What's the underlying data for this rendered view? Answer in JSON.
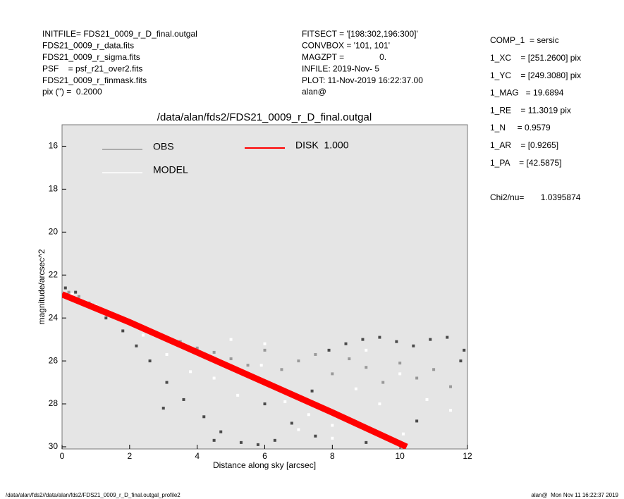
{
  "header": {
    "left": [
      "INITFILE= FDS21_0009_r_D_final.outgal",
      "FDS21_0009_r_data.fits",
      "FDS21_0009_r_sigma.fits",
      "PSF    = psf_r21_over2.fits",
      "FDS21_0009_r_finmask.fits",
      "pix (\") =  0.2000"
    ],
    "middle": [
      "FITSECT = '[198:302,196:300]'",
      "CONVBOX = '101, 101'",
      "MAGZPT =               0.",
      "INFILE: 2019-Nov- 5",
      "PLOT: 11-Nov-2019 16:22:37.00",
      "alan@"
    ],
    "right": [
      "COMP_1  = sersic",
      "1_XC    = [251.2600] pix",
      "1_YC    = [249.3080] pix",
      "1_MAG   = 19.6894",
      "1_RE    = 11.3019 pix",
      "1_N     = 0.9579",
      "1_AR    = [0.9265]",
      "1_PA    = [42.5875]"
    ],
    "chi2": "Chi2/nu=       1.0395874"
  },
  "footer": {
    "left": "/data/alan/fds2//data/alan/fds2/FDS21_0009_r_D_final.outgal_profile2",
    "right": "alan@  Mon Nov 11 16:22:37 2019"
  },
  "chart_data": {
    "type": "scatter",
    "title": "/data/alan/fds2/FDS21_0009_r_D_final.outgal",
    "x_label": "Distance along sky [arcsec]",
    "y_label": "magnitude/arcsec^2",
    "xlim": [
      0,
      12
    ],
    "ylim": [
      30.1,
      15
    ],
    "xticks": [
      0,
      2,
      4,
      6,
      8,
      10,
      12
    ],
    "yticks": [
      16,
      18,
      20,
      22,
      24,
      26,
      28,
      30
    ],
    "series": [
      {
        "color": "#4a4a4a",
        "mark": "point",
        "x": [
          0.1,
          0.4,
          0.9,
          1.3,
          1.8,
          2.2,
          2.6,
          3.1,
          3.6,
          4.2,
          4.7,
          5.3,
          5.8,
          6.3,
          6.8,
          7.4,
          7.9,
          8.4,
          8.9,
          9.4,
          9.9,
          10.4,
          10.9,
          11.4,
          11.9,
          3.0,
          4.5,
          6.0,
          7.5,
          9.0,
          10.5,
          11.8
        ],
        "values": [
          22.6,
          22.8,
          23.4,
          24.0,
          24.6,
          25.3,
          26.0,
          27.0,
          27.8,
          28.6,
          29.3,
          29.8,
          29.9,
          29.7,
          28.9,
          27.4,
          25.5,
          25.2,
          25.0,
          24.9,
          25.1,
          25.3,
          25.0,
          24.9,
          25.5,
          28.2,
          29.7,
          28.0,
          29.5,
          29.8,
          28.8,
          26.0
        ]
      },
      {
        "name": "OBS",
        "color": "#999999",
        "mark": "point",
        "x": [
          0.2,
          0.5,
          0.8,
          1.1,
          1.5,
          2,
          2.5,
          3,
          3.5,
          4,
          4.5,
          5,
          5.5,
          6,
          6.5,
          7,
          7.5,
          8,
          8.5,
          9,
          9.5,
          10,
          10.5,
          11,
          11.5
        ],
        "values": [
          22.8,
          23.0,
          23.3,
          23.6,
          23.9,
          24.2,
          24.6,
          24.9,
          25.1,
          25.4,
          25.6,
          25.9,
          26.2,
          25.5,
          26.4,
          26.0,
          25.7,
          26.6,
          25.9,
          26.3,
          27.0,
          26.1,
          26.8,
          26.4,
          27.2
        ]
      },
      {
        "name": "MODEL",
        "color": "#ffffff",
        "mark": "point",
        "x": [
          0.3,
          1,
          1.7,
          2.4,
          3.1,
          3.8,
          4.5,
          5.2,
          5.9,
          6.6,
          7.3,
          8,
          8.7,
          9.4,
          10.1,
          10.8,
          11.5,
          5,
          6,
          7,
          8,
          9,
          10
        ],
        "values": [
          22.9,
          23.4,
          24.0,
          24.8,
          25.7,
          26.5,
          26.8,
          27.6,
          26.2,
          27.9,
          28.5,
          29.0,
          27.3,
          28.0,
          29.4,
          27.8,
          28.3,
          25.0,
          25.2,
          29.2,
          29.6,
          25.5,
          26.6
        ]
      },
      {
        "name": "DISK  1.000",
        "color": "#ff0000",
        "mark": "line",
        "x": [
          0,
          2,
          4,
          6,
          8,
          10.2
        ],
        "values": [
          22.9,
          24.2,
          25.6,
          27.0,
          28.4,
          30.0
        ]
      }
    ]
  }
}
